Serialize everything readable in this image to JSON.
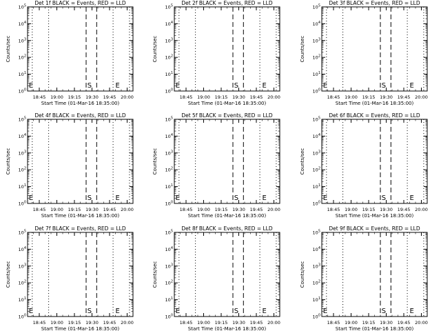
{
  "chart_data": [
    {
      "type": "line",
      "title": "Det 1f BLACK = Events, RED = LLD",
      "xlabel": "Start Time (01-Mar-16 18:35:00)",
      "ylabel": "Counts/sec",
      "x_ticks": [
        "18:45",
        "19:00",
        "19:15",
        "19:30",
        "19:45",
        "20:00"
      ],
      "y_ticks": [
        "10^0",
        "10^1",
        "10^2",
        "10^3",
        "10^4",
        "10^5"
      ],
      "ylog": true,
      "ylim": [
        1,
        100000
      ],
      "xlim": [
        "18:35",
        "20:05"
      ],
      "series": [],
      "vlines": [
        {
          "x": "18:39",
          "style": "dotted"
        },
        {
          "x": "18:53",
          "style": "dotted"
        },
        {
          "x": "19:25",
          "style": "dashed"
        },
        {
          "x": "19:34",
          "style": "dashed"
        },
        {
          "x": "19:48",
          "style": "dotted"
        },
        {
          "x": "20:02",
          "style": "dotted"
        }
      ],
      "markers": [
        {
          "label": "E",
          "x": "18:36"
        },
        {
          "label": "S",
          "x": "19:26"
        },
        {
          "label": "E",
          "x": "19:50"
        }
      ]
    },
    {
      "type": "line",
      "title": "Det 2f BLACK = Events, RED = LLD",
      "xlabel": "Start Time (01-Mar-16 18:35:00)",
      "ylabel": "Counts/sec",
      "x_ticks": [
        "18:45",
        "19:00",
        "19:15",
        "19:30",
        "19:45",
        "20:00"
      ],
      "y_ticks": [
        "10^0",
        "10^1",
        "10^2",
        "10^3",
        "10^4",
        "10^5"
      ],
      "ylog": true,
      "ylim": [
        1,
        100000
      ],
      "xlim": [
        "18:35",
        "20:05"
      ],
      "series": [],
      "vlines": [
        {
          "x": "18:39",
          "style": "dotted"
        },
        {
          "x": "18:53",
          "style": "dotted"
        },
        {
          "x": "19:25",
          "style": "dashed"
        },
        {
          "x": "19:34",
          "style": "dashed"
        },
        {
          "x": "19:48",
          "style": "dotted"
        },
        {
          "x": "20:02",
          "style": "dotted"
        }
      ],
      "markers": [
        {
          "label": "E",
          "x": "18:36"
        },
        {
          "label": "S",
          "x": "19:26"
        },
        {
          "label": "E",
          "x": "19:50"
        }
      ]
    },
    {
      "type": "line",
      "title": "Det 3f BLACK = Events, RED = LLD",
      "xlabel": "Start Time (01-Mar-16 18:35:00)",
      "ylabel": "Counts/sec",
      "x_ticks": [
        "18:45",
        "19:00",
        "19:15",
        "19:30",
        "19:45",
        "20:00"
      ],
      "y_ticks": [
        "10^0",
        "10^1",
        "10^2",
        "10^3",
        "10^4",
        "10^5"
      ],
      "ylog": true,
      "ylim": [
        1,
        100000
      ],
      "xlim": [
        "18:35",
        "20:05"
      ],
      "series": [],
      "vlines": [
        {
          "x": "18:39",
          "style": "dotted"
        },
        {
          "x": "18:53",
          "style": "dotted"
        },
        {
          "x": "19:25",
          "style": "dashed"
        },
        {
          "x": "19:34",
          "style": "dashed"
        },
        {
          "x": "19:48",
          "style": "dotted"
        },
        {
          "x": "20:02",
          "style": "dotted"
        }
      ],
      "markers": [
        {
          "label": "E",
          "x": "18:36"
        },
        {
          "label": "S",
          "x": "19:26"
        },
        {
          "label": "E",
          "x": "19:50"
        }
      ]
    },
    {
      "type": "line",
      "title": "Det 4f BLACK = Events, RED = LLD",
      "xlabel": "Start Time (01-Mar-16 18:35:00)",
      "ylabel": "Counts/sec",
      "x_ticks": [
        "18:45",
        "19:00",
        "19:15",
        "19:30",
        "19:45",
        "20:00"
      ],
      "y_ticks": [
        "10^0",
        "10^1",
        "10^2",
        "10^3",
        "10^4",
        "10^5"
      ],
      "ylog": true,
      "ylim": [
        1,
        100000
      ],
      "xlim": [
        "18:35",
        "20:05"
      ],
      "series": [],
      "vlines": [
        {
          "x": "18:39",
          "style": "dotted"
        },
        {
          "x": "18:53",
          "style": "dotted"
        },
        {
          "x": "19:25",
          "style": "dashed"
        },
        {
          "x": "19:34",
          "style": "dashed"
        },
        {
          "x": "19:48",
          "style": "dotted"
        },
        {
          "x": "20:02",
          "style": "dotted"
        }
      ],
      "markers": [
        {
          "label": "E",
          "x": "18:36"
        },
        {
          "label": "S",
          "x": "19:26"
        },
        {
          "label": "E",
          "x": "19:50"
        }
      ]
    },
    {
      "type": "line",
      "title": "Det 5f BLACK = Events, RED = LLD",
      "xlabel": "Start Time (01-Mar-16 18:35:00)",
      "ylabel": "Counts/sec",
      "x_ticks": [
        "18:45",
        "19:00",
        "19:15",
        "19:30",
        "19:45",
        "20:00"
      ],
      "y_ticks": [
        "10^0",
        "10^1",
        "10^2",
        "10^3",
        "10^4",
        "10^5"
      ],
      "ylog": true,
      "ylim": [
        1,
        100000
      ],
      "xlim": [
        "18:35",
        "20:05"
      ],
      "series": [],
      "vlines": [
        {
          "x": "18:39",
          "style": "dotted"
        },
        {
          "x": "18:53",
          "style": "dotted"
        },
        {
          "x": "19:25",
          "style": "dashed"
        },
        {
          "x": "19:34",
          "style": "dashed"
        },
        {
          "x": "19:48",
          "style": "dotted"
        },
        {
          "x": "20:02",
          "style": "dotted"
        }
      ],
      "markers": [
        {
          "label": "E",
          "x": "18:36"
        },
        {
          "label": "S",
          "x": "19:26"
        },
        {
          "label": "E",
          "x": "19:50"
        }
      ]
    },
    {
      "type": "line",
      "title": "Det 6f BLACK = Events, RED = LLD",
      "xlabel": "Start Time (01-Mar-16 18:35:00)",
      "ylabel": "Counts/sec",
      "x_ticks": [
        "18:45",
        "19:00",
        "19:15",
        "19:30",
        "19:45",
        "20:00"
      ],
      "y_ticks": [
        "10^0",
        "10^1",
        "10^2",
        "10^3",
        "10^4",
        "10^5"
      ],
      "ylog": true,
      "ylim": [
        1,
        100000
      ],
      "xlim": [
        "18:35",
        "20:05"
      ],
      "series": [],
      "vlines": [
        {
          "x": "18:39",
          "style": "dotted"
        },
        {
          "x": "18:53",
          "style": "dotted"
        },
        {
          "x": "19:25",
          "style": "dashed"
        },
        {
          "x": "19:34",
          "style": "dashed"
        },
        {
          "x": "19:48",
          "style": "dotted"
        },
        {
          "x": "20:02",
          "style": "dotted"
        }
      ],
      "markers": [
        {
          "label": "E",
          "x": "18:36"
        },
        {
          "label": "S",
          "x": "19:26"
        },
        {
          "label": "E",
          "x": "19:50"
        }
      ]
    },
    {
      "type": "line",
      "title": "Det 7f BLACK = Events, RED = LLD",
      "xlabel": "Start Time (01-Mar-16 18:35:00)",
      "ylabel": "Counts/sec",
      "x_ticks": [
        "18:45",
        "19:00",
        "19:15",
        "19:30",
        "19:45",
        "20:00"
      ],
      "y_ticks": [
        "10^0",
        "10^1",
        "10^2",
        "10^3",
        "10^4",
        "10^5"
      ],
      "ylog": true,
      "ylim": [
        1,
        100000
      ],
      "xlim": [
        "18:35",
        "20:05"
      ],
      "series": [],
      "vlines": [
        {
          "x": "18:39",
          "style": "dotted"
        },
        {
          "x": "18:53",
          "style": "dotted"
        },
        {
          "x": "19:25",
          "style": "dashed"
        },
        {
          "x": "19:34",
          "style": "dashed"
        },
        {
          "x": "19:48",
          "style": "dotted"
        },
        {
          "x": "20:02",
          "style": "dotted"
        }
      ],
      "markers": [
        {
          "label": "E",
          "x": "18:36"
        },
        {
          "label": "S",
          "x": "19:26"
        },
        {
          "label": "E",
          "x": "19:50"
        }
      ]
    },
    {
      "type": "line",
      "title": "Det 8f BLACK = Events, RED = LLD",
      "xlabel": "Start Time (01-Mar-16 18:35:00)",
      "ylabel": "Counts/sec",
      "x_ticks": [
        "18:45",
        "19:00",
        "19:15",
        "19:30",
        "19:45",
        "20:00"
      ],
      "y_ticks": [
        "10^0",
        "10^1",
        "10^2",
        "10^3",
        "10^4",
        "10^5"
      ],
      "ylog": true,
      "ylim": [
        1,
        100000
      ],
      "xlim": [
        "18:35",
        "20:05"
      ],
      "series": [],
      "vlines": [
        {
          "x": "18:39",
          "style": "dotted"
        },
        {
          "x": "18:53",
          "style": "dotted"
        },
        {
          "x": "19:25",
          "style": "dashed"
        },
        {
          "x": "19:34",
          "style": "dashed"
        },
        {
          "x": "19:48",
          "style": "dotted"
        },
        {
          "x": "20:02",
          "style": "dotted"
        }
      ],
      "markers": [
        {
          "label": "E",
          "x": "18:36"
        },
        {
          "label": "S",
          "x": "19:26"
        },
        {
          "label": "E",
          "x": "19:50"
        }
      ]
    },
    {
      "type": "line",
      "title": "Det 9f BLACK = Events, RED = LLD",
      "xlabel": "Start Time (01-Mar-16 18:35:00)",
      "ylabel": "Counts/sec",
      "x_ticks": [
        "18:45",
        "19:00",
        "19:15",
        "19:30",
        "19:45",
        "20:00"
      ],
      "y_ticks": [
        "10^0",
        "10^1",
        "10^2",
        "10^3",
        "10^4",
        "10^5"
      ],
      "ylog": true,
      "ylim": [
        1,
        100000
      ],
      "xlim": [
        "18:35",
        "20:05"
      ],
      "series": [],
      "vlines": [
        {
          "x": "18:39",
          "style": "dotted"
        },
        {
          "x": "18:53",
          "style": "dotted"
        },
        {
          "x": "19:25",
          "style": "dashed"
        },
        {
          "x": "19:34",
          "style": "dashed"
        },
        {
          "x": "19:48",
          "style": "dotted"
        },
        {
          "x": "20:02",
          "style": "dotted"
        }
      ],
      "markers": [
        {
          "label": "E",
          "x": "18:36"
        },
        {
          "label": "S",
          "x": "19:26"
        },
        {
          "label": "E",
          "x": "19:50"
        }
      ]
    }
  ]
}
